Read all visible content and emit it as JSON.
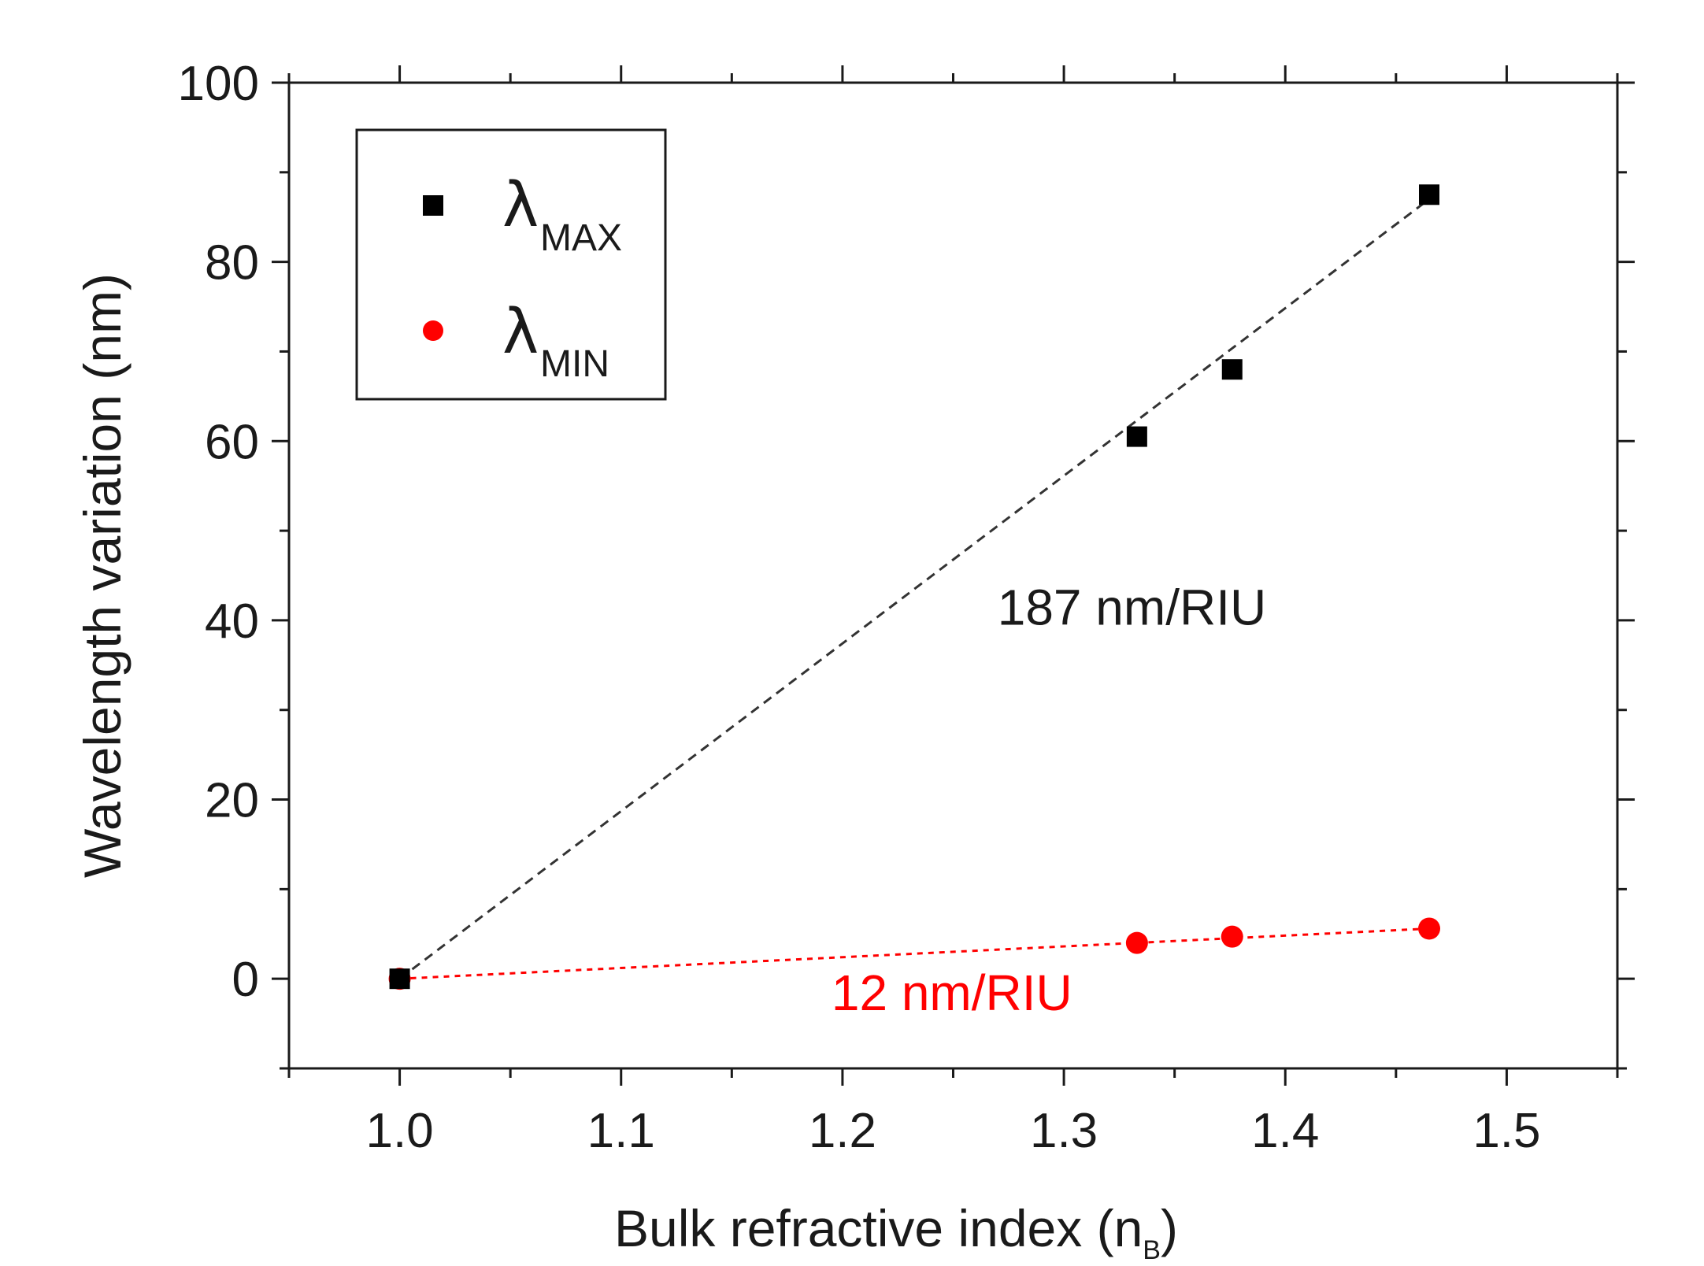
{
  "chart_data": {
    "type": "scatter",
    "title": "",
    "xlabel_main": "Bulk refractive index (n",
    "xlabel_sub": "B",
    "xlabel_end": ")",
    "ylabel": "Wavelength variation (nm)",
    "xlim": [
      0.95,
      1.55
    ],
    "ylim": [
      -10,
      100
    ],
    "xticks": [
      "1.0",
      "1.1",
      "1.2",
      "1.3",
      "1.4",
      "1.5"
    ],
    "yticks": [
      "0",
      "20",
      "40",
      "60",
      "80",
      "100"
    ],
    "legend_position": "top-left",
    "series": [
      {
        "name": "λ",
        "sub": "MAX",
        "marker": "square",
        "color": "#000000",
        "x": [
          1.0,
          1.333,
          1.376,
          1.465
        ],
        "y": [
          0,
          60.5,
          68.0,
          87.5
        ],
        "fit": {
          "style": "dashed",
          "x": [
            1.0,
            1.465
          ],
          "y": [
            0,
            87.0
          ]
        }
      },
      {
        "name": "λ",
        "sub": "MIN",
        "marker": "circle",
        "color": "#ff0000",
        "x": [
          1.0,
          1.333,
          1.376,
          1.465
        ],
        "y": [
          0,
          4.0,
          4.7,
          5.6
        ],
        "fit": {
          "style": "dotted",
          "x": [
            1.0,
            1.465
          ],
          "y": [
            0,
            5.6
          ]
        }
      }
    ],
    "annotations": [
      {
        "text": "187 nm/RIU",
        "x": 1.27,
        "y": 39.5,
        "color": "#1a1a1a"
      },
      {
        "text": "12 nm/RIU",
        "x": 1.195,
        "y": -3.5,
        "color": "#ff0000"
      }
    ]
  }
}
